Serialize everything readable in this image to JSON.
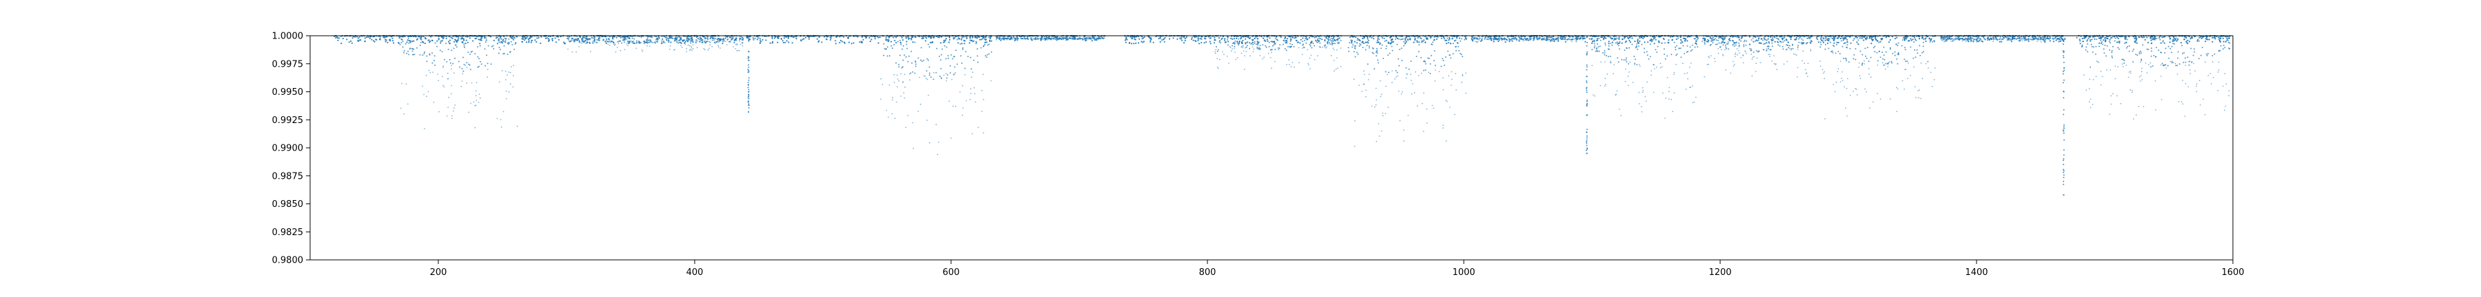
{
  "chart_data": {
    "type": "scatter",
    "title": "",
    "xlabel": "",
    "ylabel": "",
    "xlim": [
      100,
      1600
    ],
    "ylim": [
      0.98,
      1.0
    ],
    "grid": false,
    "xticks": [
      200,
      400,
      600,
      800,
      1000,
      1200,
      1400,
      1600
    ],
    "yticks": [
      0.98,
      0.9825,
      0.985,
      0.9875,
      0.99,
      0.9925,
      0.995,
      0.9975,
      1.0
    ],
    "ytick_labels": [
      "0.9800",
      "0.9825",
      "0.9850",
      "0.9875",
      "0.9900",
      "0.9925",
      "0.9950",
      "0.9975",
      "1.0000"
    ],
    "series": [
      {
        "color": "#1f77b4",
        "segments": [
          {
            "x_start": 118,
            "x_end": 262,
            "min_flux": 0.9912,
            "deep_start": 170,
            "deep_end": 262
          },
          {
            "x_start": 265,
            "x_end": 438,
            "min_flux": 0.9985,
            "deep_start": 300,
            "deep_end": 438
          },
          {
            "x_start": 440,
            "x_end": 632,
            "min_flux": 0.9892,
            "deep_start": 545,
            "deep_end": 632
          },
          {
            "x_start": 635,
            "x_end": 720,
            "min_flux": 0.9996,
            "deep_start": 635,
            "deep_end": 720
          },
          {
            "x_start": 735,
            "x_end": 905,
            "min_flux": 0.9968,
            "deep_start": 805,
            "deep_end": 905
          },
          {
            "x_start": 910,
            "x_end": 1003,
            "min_flux": 0.9898,
            "deep_start": 910,
            "deep_end": 1003
          },
          {
            "x_start": 1006,
            "x_end": 1095,
            "min_flux": 0.9994,
            "deep_start": 1006,
            "deep_end": 1095
          },
          {
            "x_start": 1098,
            "x_end": 1183,
            "min_flux": 0.9925,
            "deep_start": 1100,
            "deep_end": 1183
          },
          {
            "x_start": 1186,
            "x_end": 1272,
            "min_flux": 0.9962,
            "deep_start": 1186,
            "deep_end": 1272
          },
          {
            "x_start": 1275,
            "x_end": 1368,
            "min_flux": 0.9925,
            "deep_start": 1278,
            "deep_end": 1368
          },
          {
            "x_start": 1372,
            "x_end": 1470,
            "min_flux": 0.9994,
            "deep_start": 1372,
            "deep_end": 1470
          },
          {
            "x_start": 1478,
            "x_end": 1598,
            "min_flux": 0.9925,
            "deep_start": 1482,
            "deep_end": 1598
          }
        ],
        "spikes": [
          {
            "x": 442,
            "min_flux": 0.9932
          },
          {
            "x": 1096,
            "min_flux": 0.9895
          },
          {
            "x": 1468,
            "min_flux": 0.9858
          }
        ]
      }
    ]
  }
}
